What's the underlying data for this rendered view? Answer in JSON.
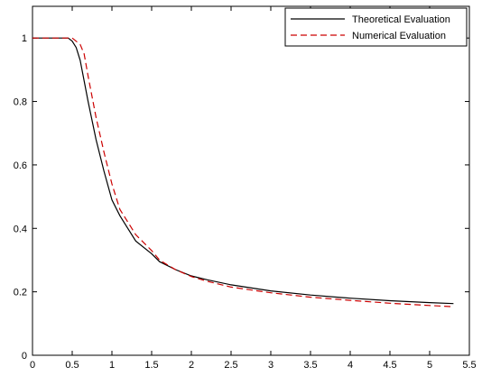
{
  "chart_data": {
    "type": "line",
    "title": "",
    "xlabel": "",
    "ylabel": "",
    "xlim": [
      0,
      5.5
    ],
    "ylim": [
      0,
      1.1
    ],
    "xticks": [
      "0",
      "0.5",
      "1",
      "1.5",
      "2",
      "2.5",
      "3",
      "3.5",
      "4",
      "4.5",
      "5",
      "5.5"
    ],
    "yticks": [
      "0",
      "0.2",
      "0.4",
      "0.6",
      "0.8",
      "1"
    ],
    "grid": false,
    "legend_position": "top-right",
    "series": [
      {
        "name": "Theoretical Evaluation",
        "color": "#000000",
        "style": "solid",
        "x": [
          0,
          0.3,
          0.45,
          0.5,
          0.55,
          0.6,
          0.7,
          0.8,
          0.9,
          1.0,
          1.1,
          1.2,
          1.3,
          1.5,
          1.6,
          1.8,
          2.0,
          2.2,
          2.5,
          3.0,
          3.5,
          4.0,
          4.5,
          5.0,
          5.3
        ],
        "y": [
          1.0,
          1.0,
          1.0,
          0.99,
          0.97,
          0.93,
          0.8,
          0.68,
          0.58,
          0.49,
          0.44,
          0.4,
          0.36,
          0.32,
          0.295,
          0.27,
          0.25,
          0.238,
          0.222,
          0.203,
          0.19,
          0.18,
          0.172,
          0.166,
          0.163
        ]
      },
      {
        "name": "Numerical Evaluation",
        "color": "#cc0000",
        "style": "dashed",
        "x": [
          0,
          0.3,
          0.5,
          0.6,
          0.65,
          0.7,
          0.8,
          0.9,
          1.0,
          1.1,
          1.2,
          1.3,
          1.5,
          1.6,
          1.8,
          2.0,
          2.2,
          2.5,
          3.0,
          3.5,
          4.0,
          4.5,
          5.0,
          5.3
        ],
        "y": [
          1.0,
          1.0,
          1.0,
          0.98,
          0.95,
          0.88,
          0.75,
          0.64,
          0.54,
          0.46,
          0.42,
          0.38,
          0.33,
          0.3,
          0.27,
          0.248,
          0.233,
          0.215,
          0.197,
          0.183,
          0.173,
          0.164,
          0.157,
          0.153
        ]
      }
    ]
  }
}
